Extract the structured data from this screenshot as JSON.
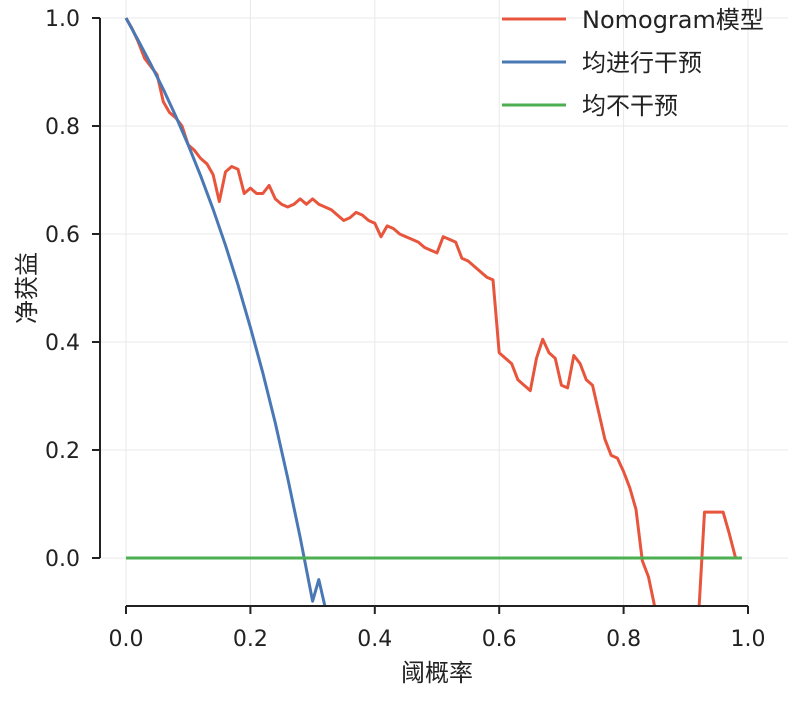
{
  "chart_data": {
    "type": "line",
    "xlabel": "阈概率",
    "ylabel": "净获益",
    "xlim": [
      0.0,
      1.0
    ],
    "ylim": [
      -0.09,
      1.0
    ],
    "xticks": [
      "0.0",
      "0.2",
      "0.4",
      "0.6",
      "0.8",
      "1.0"
    ],
    "yticks": [
      "0.0",
      "0.2",
      "0.4",
      "0.6",
      "0.8",
      "1.0"
    ],
    "grid": true,
    "legend_position": "top-right",
    "series": [
      {
        "name": "Nomogram模型",
        "color": "#e8553d",
        "x": [
          0.0,
          0.01,
          0.02,
          0.03,
          0.04,
          0.05,
          0.06,
          0.07,
          0.08,
          0.09,
          0.1,
          0.11,
          0.12,
          0.13,
          0.14,
          0.15,
          0.16,
          0.17,
          0.18,
          0.19,
          0.2,
          0.21,
          0.22,
          0.23,
          0.24,
          0.25,
          0.26,
          0.27,
          0.28,
          0.29,
          0.3,
          0.31,
          0.32,
          0.33,
          0.34,
          0.35,
          0.36,
          0.37,
          0.38,
          0.39,
          0.4,
          0.41,
          0.42,
          0.43,
          0.44,
          0.45,
          0.46,
          0.47,
          0.48,
          0.49,
          0.5,
          0.51,
          0.52,
          0.53,
          0.54,
          0.55,
          0.56,
          0.57,
          0.58,
          0.59,
          0.6,
          0.61,
          0.62,
          0.63,
          0.64,
          0.65,
          0.66,
          0.67,
          0.68,
          0.69,
          0.7,
          0.71,
          0.72,
          0.73,
          0.74,
          0.75,
          0.76,
          0.77,
          0.78,
          0.79,
          0.8,
          0.81,
          0.82,
          0.83,
          0.84,
          0.85,
          0.86,
          0.92,
          0.93,
          0.94,
          0.95,
          0.96,
          0.97,
          0.98,
          0.99
        ],
        "y": [
          1.0,
          0.98,
          0.955,
          0.925,
          0.91,
          0.895,
          0.845,
          0.825,
          0.815,
          0.8,
          0.765,
          0.755,
          0.74,
          0.73,
          0.71,
          0.66,
          0.715,
          0.725,
          0.72,
          0.675,
          0.685,
          0.675,
          0.675,
          0.69,
          0.665,
          0.655,
          0.65,
          0.655,
          0.665,
          0.655,
          0.665,
          0.655,
          0.65,
          0.645,
          0.635,
          0.625,
          0.63,
          0.64,
          0.635,
          0.625,
          0.62,
          0.595,
          0.615,
          0.61,
          0.6,
          0.595,
          0.59,
          0.585,
          0.575,
          0.57,
          0.565,
          0.595,
          0.59,
          0.585,
          0.555,
          0.55,
          0.54,
          0.53,
          0.52,
          0.515,
          0.38,
          0.37,
          0.36,
          0.33,
          0.32,
          0.31,
          0.37,
          0.405,
          0.38,
          0.37,
          0.32,
          0.315,
          0.375,
          0.36,
          0.33,
          0.32,
          0.27,
          0.22,
          0.19,
          0.185,
          0.16,
          0.13,
          0.09,
          -0.005,
          -0.035,
          -0.09,
          -0.12,
          -0.12,
          0.085,
          0.085,
          0.085,
          0.085,
          0.045,
          0.0,
          0.0
        ]
      },
      {
        "name": "均进行干预",
        "color": "#4a78b5",
        "x": [
          0.0,
          0.02,
          0.04,
          0.06,
          0.08,
          0.1,
          0.12,
          0.14,
          0.16,
          0.18,
          0.2,
          0.22,
          0.24,
          0.26,
          0.28,
          0.3,
          0.31,
          0.32
        ],
        "y": [
          1.0,
          0.958,
          0.914,
          0.868,
          0.818,
          0.765,
          0.708,
          0.646,
          0.579,
          0.506,
          0.427,
          0.343,
          0.25,
          0.148,
          0.038,
          -0.08,
          -0.04,
          -0.09
        ]
      },
      {
        "name": "均不干预",
        "color": "#4caf50",
        "x": [
          0.0,
          0.99
        ],
        "y": [
          0.0,
          0.0
        ]
      }
    ]
  }
}
